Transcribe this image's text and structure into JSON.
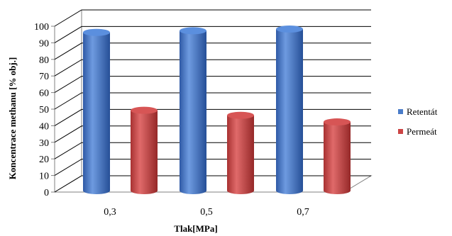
{
  "chart_data": {
    "type": "bar",
    "style": "3d-cylinder",
    "categories": [
      "0,3",
      "0,5",
      "0,7"
    ],
    "series": [
      {
        "name": "Retentát",
        "values": [
          95,
          96,
          97
        ],
        "color": "#4a7cc9"
      },
      {
        "name": "Permeát",
        "values": [
          48,
          45,
          41
        ],
        "color": "#cc4444"
      }
    ],
    "ylabel": "Koncentrace methanu  [% obj.]",
    "xlabel": "Tlak[MPa]",
    "ylim": [
      0,
      100
    ],
    "yticks": [
      "0",
      "10",
      "20",
      "30",
      "40",
      "50",
      "60",
      "70",
      "80",
      "90",
      "100"
    ],
    "grid": true,
    "legend": "right"
  }
}
